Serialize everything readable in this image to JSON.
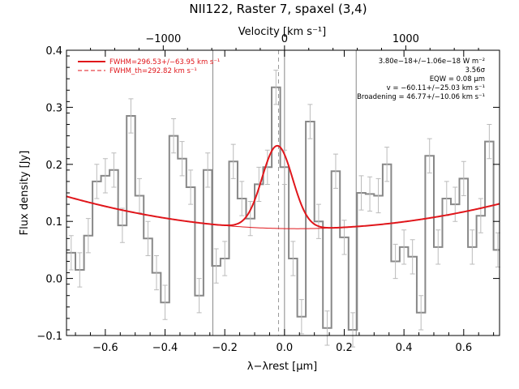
{
  "chart_data": {
    "type": "line",
    "title": "NII122, Raster 7, spaxel (3,4)",
    "xlabel": "λ−λrest [μm]",
    "ylabel": "Flux density [Jy]",
    "top_xlabel": "Velocity [km s⁻¹]",
    "xlim": [
      -0.73,
      0.72
    ],
    "ylim": [
      -0.1,
      0.4
    ],
    "x_ticks": [
      -0.6,
      -0.4,
      -0.2,
      0.0,
      0.2,
      0.4,
      0.6
    ],
    "x_tick_labels": [
      "−0.6",
      "−0.4",
      "−0.2",
      "0.0",
      "0.2",
      "0.4",
      "0.6"
    ],
    "y_ticks": [
      -0.1,
      0.0,
      0.1,
      0.2,
      0.3,
      0.4
    ],
    "y_tick_labels": [
      "−0.1",
      "0.0",
      "0.1",
      "0.2",
      "0.3",
      "0.4"
    ],
    "top_ticks": [
      -1000,
      0,
      1000
    ],
    "top_tick_labels": [
      "−1000",
      "0",
      "1000"
    ],
    "top_x_per_velocity": 0.000406,
    "grid": false,
    "vertical_markers": {
      "solid": [
        -0.24,
        0.0,
        0.24
      ],
      "dashed": [
        -0.02
      ]
    },
    "series": [
      {
        "kind": "step_with_errors",
        "color": "#888888",
        "bin_width": 0.0286,
        "x": [
          -0.7143,
          -0.6857,
          -0.6571,
          -0.6286,
          -0.6,
          -0.5714,
          -0.5429,
          -0.5143,
          -0.4857,
          -0.4571,
          -0.4286,
          -0.4,
          -0.3714,
          -0.3429,
          -0.3143,
          -0.2857,
          -0.2571,
          -0.2286,
          -0.2,
          -0.1714,
          -0.1429,
          -0.1143,
          -0.0857,
          -0.0571,
          -0.0286,
          0.0,
          0.0286,
          0.0571,
          0.0857,
          0.1143,
          0.1429,
          0.1714,
          0.2,
          0.2286,
          0.2571,
          0.2857,
          0.3143,
          0.3429,
          0.3714,
          0.4,
          0.4286,
          0.4571,
          0.4857,
          0.5143,
          0.5429,
          0.5714,
          0.6,
          0.6286,
          0.6571,
          0.6857,
          0.7143
        ],
        "y": [
          0.045,
          0.015,
          0.075,
          0.17,
          0.18,
          0.19,
          0.093,
          0.285,
          0.145,
          0.07,
          0.01,
          -0.042,
          0.25,
          0.21,
          0.16,
          -0.03,
          0.19,
          0.022,
          0.035,
          0.205,
          0.14,
          0.105,
          0.165,
          0.195,
          0.335,
          0.195,
          0.035,
          -0.067,
          0.275,
          0.1,
          -0.087,
          0.188,
          0.072,
          -0.09,
          0.15,
          0.148,
          0.145,
          0.2,
          0.03,
          0.055,
          0.038,
          -0.06,
          0.215,
          0.055,
          0.14,
          0.13,
          0.175,
          0.055,
          0.11,
          0.24,
          0.05
        ],
        "err": [
          0.03,
          0.03,
          0.03,
          0.03,
          0.03,
          0.03,
          0.03,
          0.03,
          0.03,
          0.03,
          0.03,
          0.03,
          0.03,
          0.03,
          0.03,
          0.03,
          0.03,
          0.03,
          0.03,
          0.03,
          0.03,
          0.03,
          0.03,
          0.03,
          0.03,
          0.03,
          0.03,
          0.03,
          0.03,
          0.03,
          0.03,
          0.03,
          0.03,
          0.03,
          0.03,
          0.03,
          0.03,
          0.03,
          0.03,
          0.03,
          0.03,
          0.03,
          0.03,
          0.03,
          0.03,
          0.03,
          0.03,
          0.03,
          0.03,
          0.03,
          0.03
        ]
      },
      {
        "kind": "model_fit",
        "name": "FWHM=296.53+/−63.95 km s⁻¹",
        "color": "#e0161b",
        "baseline_poly": [
          0.0874,
          -0.008,
          0.095
        ],
        "gaussian": {
          "center": -0.024,
          "amplitude": 0.145,
          "sigma": 0.0511
        },
        "x_range": [
          -0.73,
          0.72
        ]
      },
      {
        "kind": "continuum",
        "color": "#e0161b",
        "x_range": [
          -0.2,
          0.2
        ]
      }
    ],
    "legend": {
      "position": "top-left",
      "entries": [
        {
          "label": "FWHM=296.53+/−63.95 km s⁻¹",
          "style": "solid"
        },
        {
          "label": "FWHM_th=292.82 km s⁻¹",
          "style": "dashed"
        }
      ]
    },
    "annotations": [
      "3.80e−18+/−1.06e−18 W m⁻²",
      "3.56σ",
      "EQW = 0.08 μm",
      "v = −60.11+/−25.03 km s⁻¹",
      "Broadening = 46.77+/−10.06 km s⁻¹"
    ]
  }
}
